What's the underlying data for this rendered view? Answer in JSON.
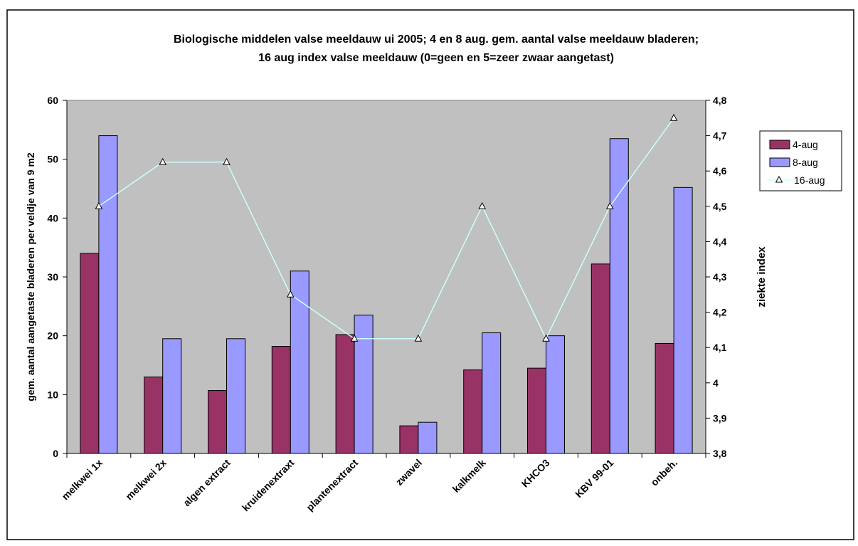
{
  "chart_data": {
    "type": "bar",
    "title_lines": [
      "Biologische middelen valse meeldauw ui 2005; 4 en 8 aug. gem. aantal valse meeldauw bladeren;",
      "16 aug index valse meeldauw (0=geen en 5=zeer zwaar aangetast)"
    ],
    "ylabel": "gem. aantal aangetaste bladeren per veldje van  9 m2",
    "y2label": "ziekte index",
    "categories": [
      "melkwei 1x",
      "melkwei 2x",
      "algen extract",
      "kruidenextraxt",
      "plantenextract",
      "zwavel",
      "kalkmelk",
      "KHCO3",
      "KBV 99-01",
      "onbeh."
    ],
    "ylim": [
      0,
      60
    ],
    "y_ticks": [
      0,
      10,
      20,
      30,
      40,
      50,
      60
    ],
    "y2lim": [
      3.8,
      4.8
    ],
    "y2_ticks": [
      "3,8",
      "3,9",
      "4",
      "4,1",
      "4,2",
      "4,3",
      "4,4",
      "4,5",
      "4,6",
      "4,7",
      "4,8"
    ],
    "series": [
      {
        "name": "4-aug",
        "kind": "bar",
        "color": "#993366",
        "values": [
          34,
          13,
          10.7,
          18.2,
          20.2,
          4.7,
          14.2,
          14.5,
          32.2,
          18.7
        ]
      },
      {
        "name": "8-aug",
        "kind": "bar",
        "color": "#9999FF",
        "values": [
          54,
          19.5,
          19.5,
          31,
          23.5,
          5.3,
          20.5,
          20,
          53.5,
          45.2
        ]
      },
      {
        "name": "16-aug",
        "kind": "line",
        "axis": "right",
        "color": "#CCFFFF",
        "values": [
          4.5,
          4.625,
          4.625,
          4.25,
          4.125,
          4.125,
          4.5,
          4.125,
          4.5,
          4.75
        ]
      }
    ],
    "plot_background": "#C0C0C0",
    "legend_position": "right",
    "grid": false
  }
}
